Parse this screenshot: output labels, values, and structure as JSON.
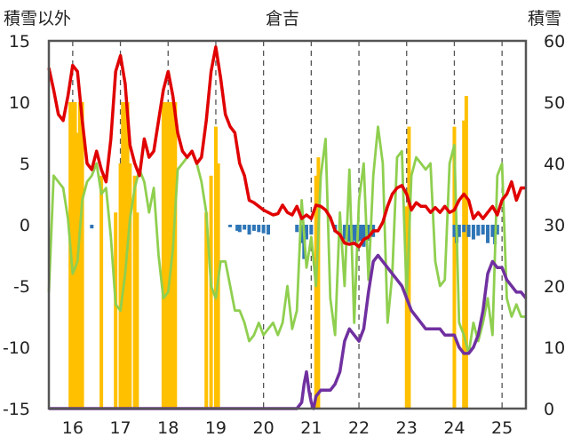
{
  "chart_data": {
    "type": "combo",
    "title": "倉吉",
    "left_axis_label": "積雪以外",
    "right_axis_label": "積雪",
    "x_tick_labels": [
      "16",
      "17",
      "18",
      "19",
      "20",
      "21",
      "22",
      "23",
      "24",
      "25"
    ],
    "x_range": [
      15.5,
      25.5
    ],
    "ylim_left": [
      -15,
      15
    ],
    "ylim_left_ticks": [
      15,
      10,
      5,
      0,
      -5,
      -10,
      -15
    ],
    "ylim_right": [
      0,
      60
    ],
    "ylim_right_ticks": [
      60,
      50,
      40,
      30,
      20,
      10,
      0
    ],
    "grid": "vertical dashed lines at each day",
    "series": [
      {
        "key": "red_line",
        "axis": "left",
        "kind": "line",
        "color": "#e00000",
        "x": [
          15.5,
          15.6,
          15.7,
          15.8,
          15.9,
          16.0,
          16.1,
          16.2,
          16.3,
          16.4,
          16.5,
          16.6,
          16.7,
          16.8,
          16.9,
          17.0,
          17.1,
          17.2,
          17.3,
          17.4,
          17.5,
          17.6,
          17.7,
          17.8,
          17.9,
          18.0,
          18.1,
          18.2,
          18.3,
          18.4,
          18.5,
          18.6,
          18.7,
          18.8,
          18.9,
          19.0,
          19.1,
          19.2,
          19.3,
          19.4,
          19.5,
          19.6,
          19.7,
          19.8,
          19.9,
          20.0,
          20.1,
          20.2,
          20.3,
          20.4,
          20.5,
          20.6,
          20.7,
          20.8,
          20.9,
          21.0,
          21.1,
          21.2,
          21.3,
          21.4,
          21.5,
          21.6,
          21.7,
          21.8,
          21.9,
          22.0,
          22.1,
          22.2,
          22.3,
          22.4,
          22.5,
          22.6,
          22.7,
          22.8,
          22.9,
          23.0,
          23.1,
          23.2,
          23.3,
          23.4,
          23.5,
          23.6,
          23.7,
          23.8,
          23.9,
          24.0,
          24.1,
          24.2,
          24.3,
          24.4,
          24.5,
          24.6,
          24.7,
          24.8,
          24.9,
          25.0,
          25.1,
          25.2,
          25.3,
          25.4,
          25.5
        ],
        "y": [
          12.8,
          11.0,
          9.0,
          8.5,
          10.5,
          13.0,
          12.5,
          8.5,
          5.0,
          4.5,
          6.0,
          4.5,
          3.5,
          7.0,
          12.5,
          13.8,
          11.5,
          6.5,
          5.0,
          4.0,
          7.0,
          5.5,
          6.0,
          8.5,
          11.0,
          12.5,
          10.5,
          7.5,
          6.0,
          5.5,
          6.0,
          5.0,
          5.5,
          8.5,
          12.5,
          14.5,
          12.0,
          9.0,
          8.0,
          7.5,
          5.0,
          4.0,
          2.0,
          1.8,
          1.5,
          1.2,
          1.0,
          0.8,
          0.9,
          1.6,
          1.0,
          0.8,
          1.5,
          0.5,
          0.8,
          0.5,
          1.6,
          1.5,
          1.2,
          0.6,
          -0.5,
          -0.8,
          -1.5,
          -1.6,
          -1.5,
          -1.8,
          -1.2,
          -1.0,
          -0.5,
          -0.5,
          0.2,
          1.5,
          2.5,
          3.0,
          3.2,
          2.5,
          1.2,
          1.8,
          1.5,
          1.5,
          1.0,
          1.4,
          1.0,
          1.5,
          1.0,
          1.2,
          2.0,
          2.5,
          2.0,
          0.5,
          1.0,
          0.5,
          1.0,
          1.5,
          0.8,
          2.0,
          2.5,
          3.5,
          2.0,
          3.0,
          3.0
        ]
      },
      {
        "key": "green_line",
        "axis": "left",
        "kind": "line",
        "color": "#8fcf4f",
        "x": [
          15.5,
          15.6,
          15.7,
          15.8,
          15.9,
          16.0,
          16.1,
          16.2,
          16.3,
          16.4,
          16.5,
          16.6,
          16.7,
          16.8,
          16.9,
          17.0,
          17.1,
          17.2,
          17.3,
          17.4,
          17.5,
          17.6,
          17.7,
          17.8,
          17.9,
          18.0,
          18.1,
          18.2,
          18.3,
          18.4,
          18.5,
          18.6,
          18.7,
          18.8,
          18.9,
          19.0,
          19.1,
          19.2,
          19.3,
          19.4,
          19.5,
          19.6,
          19.7,
          19.8,
          19.9,
          20.0,
          20.1,
          20.2,
          20.3,
          20.4,
          20.5,
          20.6,
          20.7,
          20.8,
          20.9,
          21.0,
          21.1,
          21.2,
          21.3,
          21.4,
          21.5,
          21.6,
          21.7,
          21.8,
          21.9,
          22.0,
          22.1,
          22.2,
          22.3,
          22.4,
          22.5,
          22.6,
          22.7,
          22.8,
          22.9,
          23.0,
          23.1,
          23.2,
          23.3,
          23.4,
          23.5,
          23.6,
          23.7,
          23.8,
          23.9,
          24.0,
          24.1,
          24.2,
          24.3,
          24.4,
          24.5,
          24.6,
          24.7,
          24.8,
          24.9,
          25.0,
          25.1,
          25.2,
          25.3,
          25.4,
          25.5
        ],
        "y": [
          -5.5,
          4.0,
          3.5,
          3.0,
          0.5,
          -4.0,
          -3.0,
          2.0,
          3.5,
          4.0,
          5.0,
          2.5,
          3.0,
          -1.0,
          -6.5,
          -7.0,
          -4.0,
          0.5,
          3.0,
          4.5,
          3.5,
          1.0,
          3.0,
          -2.5,
          -6.0,
          -5.5,
          -2.0,
          4.5,
          5.0,
          5.5,
          6.0,
          5.0,
          3.5,
          1.0,
          -5.0,
          -6.0,
          -3.0,
          -3.0,
          -5.0,
          -7.0,
          -7.0,
          -8.0,
          -9.5,
          -9.0,
          -8.0,
          -9.0,
          -8.5,
          -8.0,
          -9.0,
          -8.0,
          -5.0,
          -8.5,
          -7.0,
          2.0,
          -3.5,
          -1.0,
          -5.0,
          4.0,
          7.0,
          -6.0,
          -9.0,
          1.0,
          -5.0,
          4.5,
          -8.0,
          2.0,
          5.0,
          -4.5,
          4.0,
          8.0,
          5.0,
          -8.0,
          -4.0,
          5.5,
          6.0,
          -6.0,
          4.0,
          5.5,
          5.0,
          4.5,
          5.0,
          -3.0,
          -5.0,
          -4.5,
          5.0,
          6.5,
          -8.0,
          -9.0,
          -10.5,
          -8.0,
          -9.5,
          -8.0,
          -6.0,
          -9.0,
          4.0,
          5.0,
          -6.0,
          -7.5,
          -6.5,
          -7.5,
          -7.5
        ]
      },
      {
        "key": "purple_line",
        "axis": "right",
        "kind": "line",
        "color": "#7030a0",
        "x": [
          15.5,
          16.0,
          17.0,
          18.0,
          19.0,
          20.0,
          20.7,
          20.8,
          20.85,
          20.9,
          20.95,
          21.0,
          21.05,
          21.1,
          21.2,
          21.3,
          21.4,
          21.5,
          21.6,
          21.7,
          21.8,
          21.9,
          22.0,
          22.1,
          22.2,
          22.3,
          22.4,
          22.5,
          22.6,
          22.7,
          22.8,
          22.9,
          23.0,
          23.1,
          23.2,
          23.3,
          23.4,
          23.5,
          23.6,
          23.7,
          23.8,
          23.9,
          24.0,
          24.1,
          24.2,
          24.3,
          24.4,
          24.5,
          24.6,
          24.7,
          24.8,
          24.9,
          25.0,
          25.1,
          25.2,
          25.3,
          25.4,
          25.5
        ],
        "y": [
          0,
          0,
          0,
          0,
          0,
          0,
          0,
          1,
          4,
          6,
          3,
          1,
          0,
          2,
          3,
          3,
          3,
          4,
          6,
          11,
          13,
          12,
          11,
          13,
          19,
          24,
          25,
          24,
          23,
          22,
          21,
          20,
          18,
          16,
          15,
          14,
          13,
          13,
          13,
          13,
          12,
          12,
          12,
          10,
          9,
          9,
          10,
          12,
          16,
          22,
          24,
          23,
          23,
          21,
          20,
          19,
          19,
          18
        ]
      },
      {
        "key": "yellow_bars",
        "axis": "right",
        "kind": "bar",
        "color": "#ffc000",
        "x": [
          15.95,
          16.0,
          16.05,
          16.1,
          16.15,
          16.2,
          16.6,
          16.9,
          17.0,
          17.05,
          17.1,
          17.15,
          17.2,
          17.3,
          17.35,
          17.9,
          17.95,
          18.0,
          18.05,
          18.1,
          18.15,
          18.8,
          18.9,
          19.0,
          19.05,
          21.1,
          21.15,
          23.0,
          23.05,
          24.0,
          24.2,
          24.25
        ],
        "y": [
          50,
          50,
          50,
          45,
          50,
          50,
          38,
          32,
          40,
          50,
          50,
          50,
          40,
          38,
          32,
          50,
          50,
          50,
          50,
          50,
          50,
          32,
          38,
          46,
          40,
          38,
          41,
          33,
          46,
          46,
          47,
          51
        ]
      },
      {
        "key": "blue_bars",
        "axis": "left",
        "kind": "bar",
        "color": "#2e75b6",
        "x": [
          16.4,
          19.3,
          19.45,
          19.5,
          19.6,
          19.7,
          19.8,
          19.9,
          20.0,
          20.1,
          20.7,
          20.8,
          20.85,
          20.9,
          21.0,
          21.5,
          21.6,
          21.7,
          21.8,
          21.85,
          21.9,
          21.95,
          22.0,
          22.05,
          22.1,
          22.2,
          22.3,
          24.0,
          24.05,
          24.1,
          24.2,
          24.3,
          24.4,
          24.5,
          24.6,
          24.7,
          24.8,
          24.85,
          24.9
        ],
        "y": [
          -0.3,
          -0.2,
          -0.5,
          -0.6,
          -0.4,
          -0.8,
          -0.5,
          -0.6,
          -0.7,
          -0.8,
          -0.6,
          -1.5,
          -2.8,
          -1.2,
          -0.8,
          -0.6,
          -1.0,
          -1.2,
          -1.4,
          -1.5,
          -1.3,
          -1.5,
          -1.2,
          -1.3,
          -1.8,
          -1.3,
          -1.0,
          -1.0,
          -1.5,
          -1.0,
          -0.6,
          -1.0,
          -1.2,
          -0.9,
          -0.8,
          -1.5,
          -1.0,
          -1.6,
          -0.8
        ]
      }
    ]
  }
}
